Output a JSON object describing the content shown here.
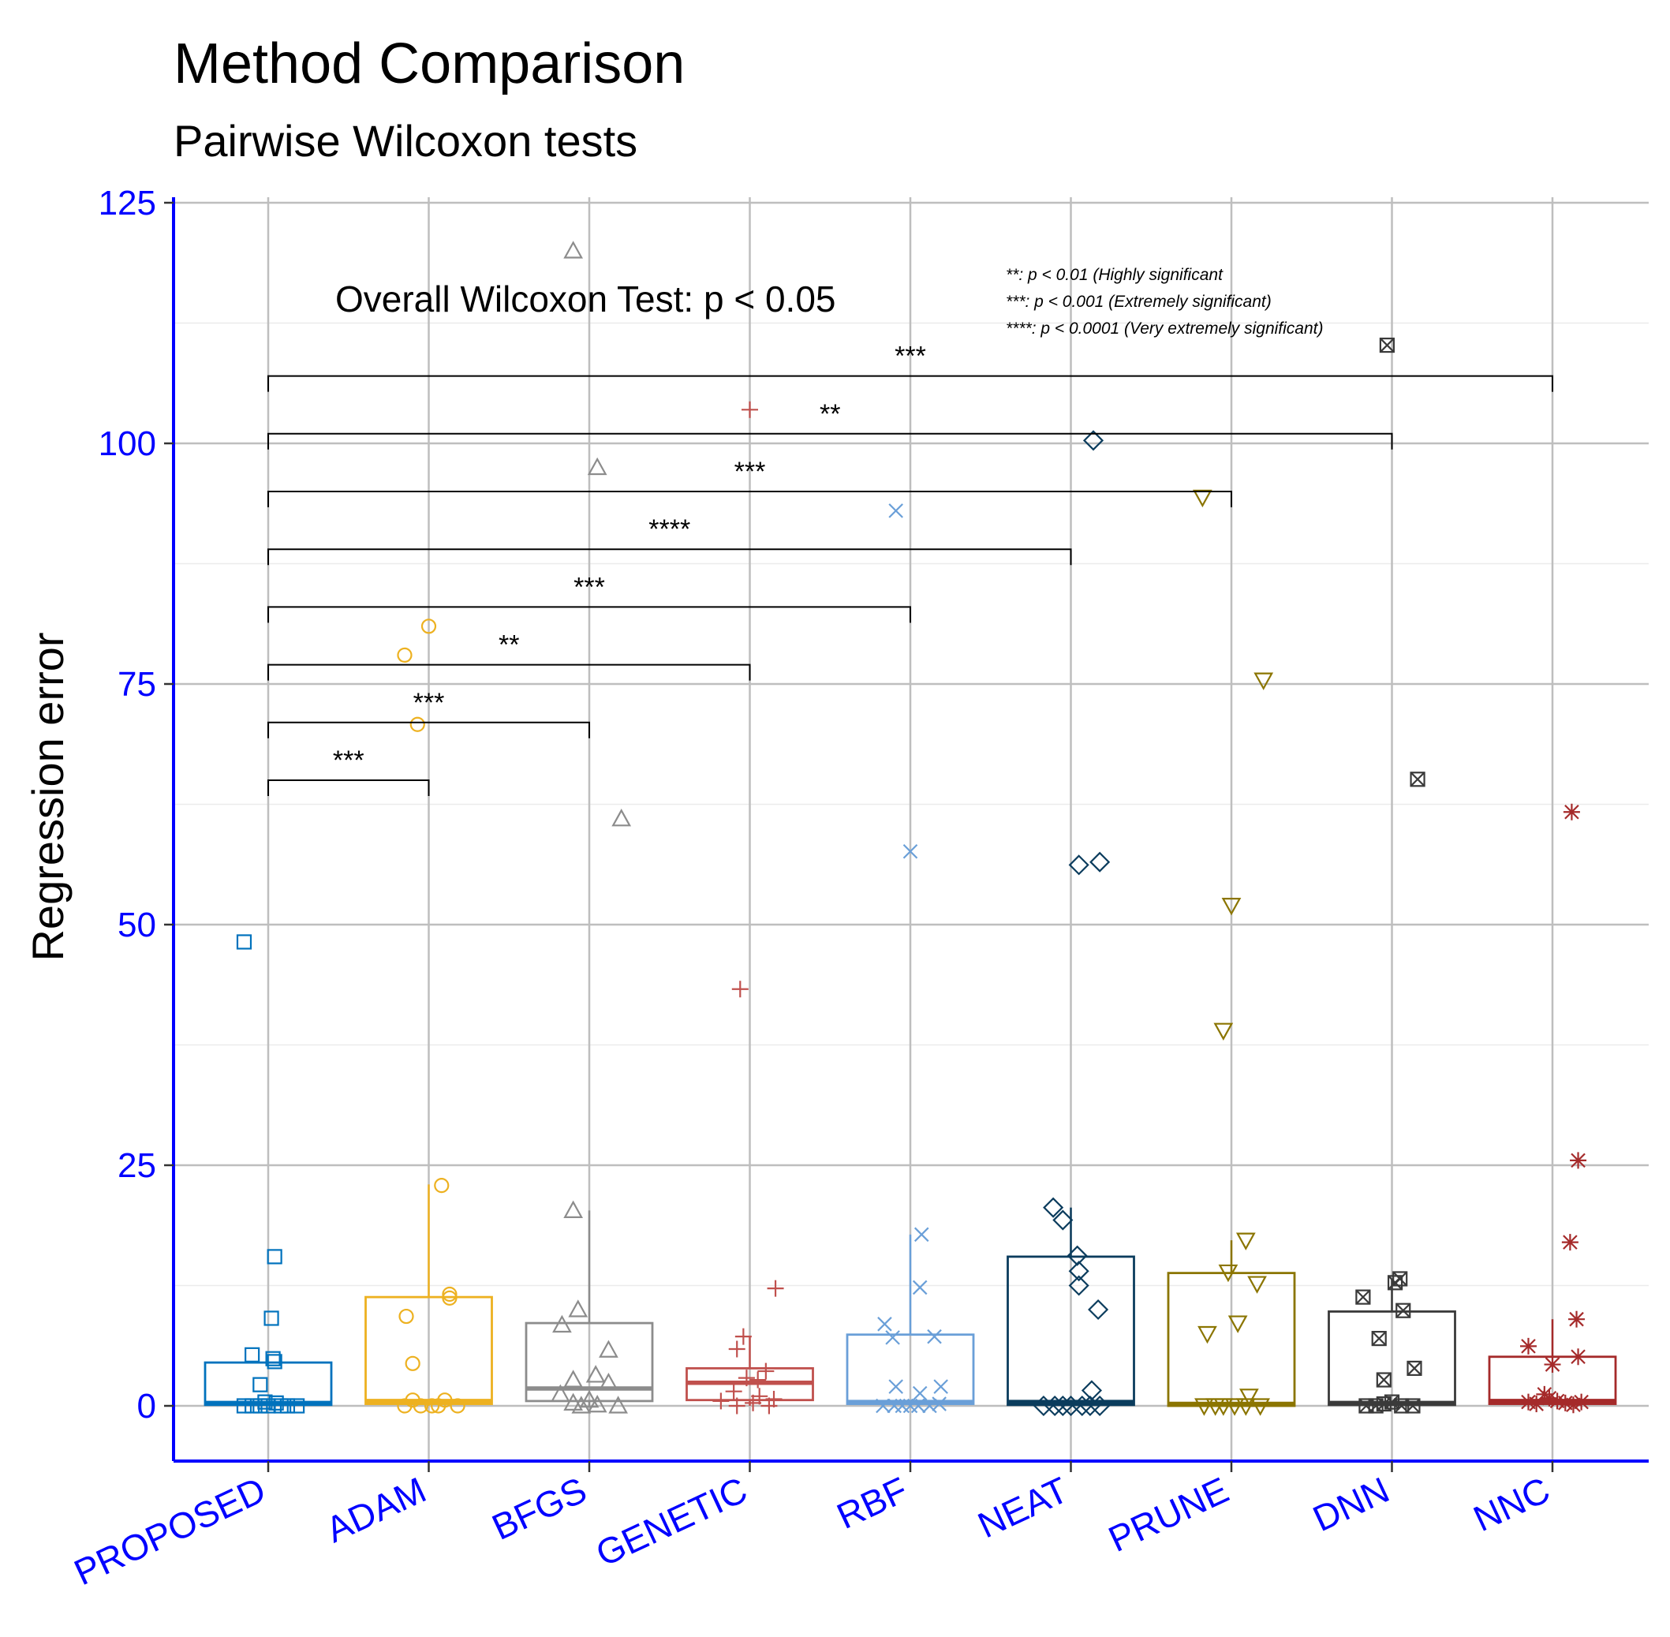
{
  "colors": {
    "axis": "#0000FF",
    "grid_major": "#BEBEBE",
    "grid_minor": "#EBEBEB",
    "groups": [
      "#0072BD",
      "#EDB120",
      "#8C8C8C",
      "#C0504D",
      "#6A9FD8",
      "#0B3C5D",
      "#8B7500",
      "#3A3A3A",
      "#A52A2A"
    ]
  },
  "chart_data": {
    "type": "box",
    "title": "Method Comparison",
    "subtitle": "Pairwise Wilcoxon tests",
    "ylabel": "Regression error",
    "xlabel": "",
    "ylim": [
      -5.7,
      125
    ],
    "yticks": [
      0,
      25,
      50,
      75,
      100,
      125
    ],
    "categories": [
      "PROPOSED",
      "ADAM",
      "BFGS",
      "GENETIC",
      "RBF",
      "NEAT",
      "PRUNE",
      "DNN",
      "NNC"
    ],
    "annotation": "Overall Wilcoxon Test: p < 0.05",
    "significance_legend": [
      "**: p < 0.01 (Highly significant",
      "***: p < 0.001  (Extremely significant)",
      "****: p < 0.0001 (Very extremely significant)"
    ],
    "boxes": [
      {
        "name": "PROPOSED",
        "q1": 0.1,
        "median": 0.3,
        "q3": 4.5,
        "whisker_low": 0,
        "whisker_high": 4.5
      },
      {
        "name": "ADAM",
        "q1": 0.2,
        "median": 0.5,
        "q3": 11.3,
        "whisker_low": 0,
        "whisker_high": 23
      },
      {
        "name": "BFGS",
        "q1": 0.5,
        "median": 1.8,
        "q3": 8.6,
        "whisker_low": 0,
        "whisker_high": 20.3
      },
      {
        "name": "GENETIC",
        "q1": 0.6,
        "median": 2.4,
        "q3": 3.9,
        "whisker_low": 0,
        "whisker_high": 7.2
      },
      {
        "name": "RBF",
        "q1": 0.2,
        "median": 0.4,
        "q3": 7.4,
        "whisker_low": 0,
        "whisker_high": 17.8
      },
      {
        "name": "NEAT",
        "q1": 0.1,
        "median": 0.4,
        "q3": 15.5,
        "whisker_low": 0,
        "whisker_high": 20.6
      },
      {
        "name": "PRUNE",
        "q1": 0.0,
        "median": 0.2,
        "q3": 13.8,
        "whisker_low": 0,
        "whisker_high": 17.2
      },
      {
        "name": "DNN",
        "q1": 0.1,
        "median": 0.3,
        "q3": 9.8,
        "whisker_low": 0,
        "whisker_high": 13.2
      },
      {
        "name": "NNC",
        "q1": 0.2,
        "median": 0.5,
        "q3": 5.1,
        "whisker_low": 0,
        "whisker_high": 9
      }
    ],
    "points": [
      {
        "group": "PROPOSED",
        "shape": "square",
        "values": [
          [
            -0.15,
            48.2
          ],
          [
            0.04,
            15.5
          ],
          [
            0.02,
            9.1
          ],
          [
            0.03,
            4.9
          ],
          [
            0.04,
            4.6
          ],
          [
            -0.1,
            5.3
          ],
          [
            -0.05,
            2.2
          ],
          [
            -0.15,
            0
          ],
          [
            -0.1,
            0
          ],
          [
            -0.05,
            0
          ],
          [
            0,
            0
          ],
          [
            0.05,
            0.3
          ],
          [
            0.08,
            0
          ],
          [
            0.12,
            0
          ],
          [
            0.18,
            0
          ],
          [
            -0.02,
            0.4
          ]
        ]
      },
      {
        "group": "ADAM",
        "shape": "circle",
        "values": [
          [
            0.0,
            81
          ],
          [
            -0.15,
            78
          ],
          [
            -0.07,
            70.8
          ],
          [
            0.08,
            22.9
          ],
          [
            0.13,
            11.6
          ],
          [
            0.13,
            11.2
          ],
          [
            -0.14,
            9.3
          ],
          [
            -0.1,
            4.4
          ],
          [
            -0.1,
            0.6
          ],
          [
            0.1,
            0.6
          ],
          [
            -0.15,
            0
          ],
          [
            -0.05,
            0
          ],
          [
            0.02,
            0
          ],
          [
            0.06,
            0
          ],
          [
            0.18,
            0
          ]
        ]
      },
      {
        "group": "BFGS",
        "shape": "triangle",
        "values": [
          [
            -0.1,
            120
          ],
          [
            0.05,
            97.5
          ],
          [
            0.2,
            61
          ],
          [
            -0.1,
            20.3
          ],
          [
            -0.07,
            10
          ],
          [
            -0.17,
            8.4
          ],
          [
            0.12,
            5.8
          ],
          [
            0.04,
            3.2
          ],
          [
            -0.1,
            2.7
          ],
          [
            0.12,
            2.4
          ],
          [
            -0.18,
            1.2
          ],
          [
            -0.1,
            0.3
          ],
          [
            -0.05,
            0
          ],
          [
            0,
            0.6
          ],
          [
            0.05,
            0.1
          ],
          [
            0.18,
            0
          ]
        ]
      },
      {
        "group": "GENETIC",
        "shape": "plus",
        "values": [
          [
            0,
            103.5
          ],
          [
            -0.06,
            43.3
          ],
          [
            0.16,
            12.2
          ],
          [
            -0.04,
            7.2
          ],
          [
            -0.08,
            5.9
          ],
          [
            0.1,
            3.6
          ],
          [
            -0.02,
            2.9
          ],
          [
            0.05,
            2.7
          ],
          [
            -0.18,
            0.5
          ],
          [
            -0.08,
            0
          ],
          [
            0.02,
            0.3
          ],
          [
            0.06,
            1
          ],
          [
            0.15,
            0.7
          ],
          [
            0.12,
            0
          ],
          [
            -0.1,
            1.5
          ]
        ]
      },
      {
        "group": "RBF",
        "shape": "cross",
        "values": [
          [
            -0.09,
            93
          ],
          [
            0,
            57.6
          ],
          [
            0.07,
            17.8
          ],
          [
            0.06,
            12.3
          ],
          [
            -0.16,
            8.5
          ],
          [
            -0.11,
            7.1
          ],
          [
            0.15,
            7.2
          ],
          [
            -0.09,
            2
          ],
          [
            0.19,
            2
          ],
          [
            0.06,
            1.3
          ],
          [
            -0.17,
            0
          ],
          [
            -0.1,
            0
          ],
          [
            -0.05,
            0
          ],
          [
            0,
            0
          ],
          [
            0.05,
            0
          ],
          [
            0.12,
            0
          ],
          [
            0.18,
            0.2
          ]
        ]
      },
      {
        "group": "NEAT",
        "shape": "diamond",
        "values": [
          [
            0.14,
            100.3
          ],
          [
            0.05,
            56.2
          ],
          [
            0.18,
            56.5
          ],
          [
            -0.11,
            20.6
          ],
          [
            -0.05,
            19.3
          ],
          [
            0.04,
            15.6
          ],
          [
            0.05,
            14
          ],
          [
            0.05,
            12.5
          ],
          [
            0.17,
            10
          ],
          [
            0.13,
            1.6
          ],
          [
            -0.17,
            0
          ],
          [
            -0.1,
            0
          ],
          [
            -0.05,
            0
          ],
          [
            0,
            0
          ],
          [
            0.07,
            0
          ],
          [
            0.12,
            0
          ],
          [
            0.18,
            0
          ]
        ]
      },
      {
        "group": "PRUNE",
        "shape": "invtriangle",
        "values": [
          [
            -0.18,
            94.4
          ],
          [
            0.2,
            75.4
          ],
          [
            0,
            52
          ],
          [
            -0.05,
            39
          ],
          [
            0.09,
            17.2
          ],
          [
            -0.02,
            13.9
          ],
          [
            0.16,
            12.7
          ],
          [
            0.04,
            8.6
          ],
          [
            -0.15,
            7.5
          ],
          [
            0.11,
            1
          ],
          [
            -0.17,
            0
          ],
          [
            -0.1,
            0
          ],
          [
            -0.05,
            0
          ],
          [
            0.02,
            0
          ],
          [
            0.09,
            0
          ],
          [
            0.18,
            0
          ]
        ]
      },
      {
        "group": "DNN",
        "shape": "squarex",
        "values": [
          [
            -0.03,
            110.2
          ],
          [
            0.16,
            65.1
          ],
          [
            0.05,
            13.2
          ],
          [
            0.02,
            12.8
          ],
          [
            -0.18,
            11.3
          ],
          [
            0.07,
            9.9
          ],
          [
            -0.08,
            7
          ],
          [
            0.14,
            3.9
          ],
          [
            -0.05,
            2.7
          ],
          [
            -0.16,
            0
          ],
          [
            -0.1,
            0
          ],
          [
            -0.05,
            0.2
          ],
          [
            0,
            0.4
          ],
          [
            0.06,
            0
          ],
          [
            0.13,
            0
          ]
        ]
      },
      {
        "group": "NNC",
        "shape": "asterisk",
        "values": [
          [
            0.12,
            61.7
          ],
          [
            0.16,
            25.5
          ],
          [
            0.11,
            17
          ],
          [
            0.15,
            9
          ],
          [
            0.16,
            5.1
          ],
          [
            -0.15,
            6.2
          ],
          [
            0,
            4.3
          ],
          [
            -0.15,
            0.4
          ],
          [
            -0.1,
            0.2
          ],
          [
            -0.05,
            1.2
          ],
          [
            -0.02,
            0.8
          ],
          [
            0.03,
            0.5
          ],
          [
            0.08,
            0.3
          ],
          [
            0.13,
            0.1
          ],
          [
            0.18,
            0.4
          ]
        ]
      }
    ],
    "comparisons": [
      {
        "from": "PROPOSED",
        "to": "ADAM",
        "y": 65,
        "label": "***"
      },
      {
        "from": "PROPOSED",
        "to": "BFGS",
        "y": 71,
        "label": "***"
      },
      {
        "from": "PROPOSED",
        "to": "GENETIC",
        "y": 77,
        "label": "**"
      },
      {
        "from": "PROPOSED",
        "to": "RBF",
        "y": 83,
        "label": "***"
      },
      {
        "from": "PROPOSED",
        "to": "NEAT",
        "y": 89,
        "label": "****"
      },
      {
        "from": "PROPOSED",
        "to": "PRUNE",
        "y": 95,
        "label": "***"
      },
      {
        "from": "PROPOSED",
        "to": "DNN",
        "y": 101,
        "label": "**"
      },
      {
        "from": "PROPOSED",
        "to": "NNC",
        "y": 107,
        "label": "***"
      }
    ]
  }
}
